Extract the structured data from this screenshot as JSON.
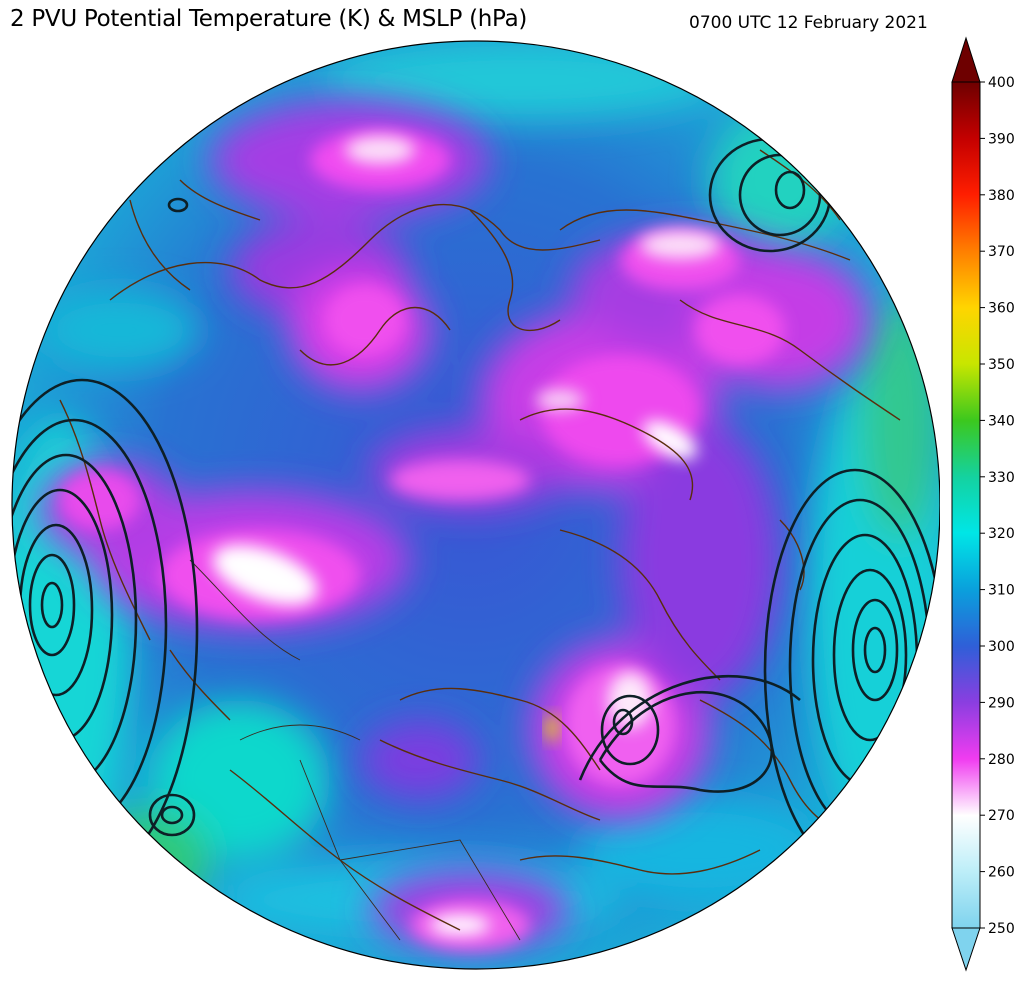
{
  "header": {
    "title": "2 PVU Potential Temperature (K) & MSLP (hPa)",
    "valid_time": "0700 UTC 12 February 2021"
  },
  "colorbar": {
    "min": 250,
    "max": 400,
    "ticks": [
      "400",
      "390",
      "380",
      "370",
      "360",
      "350",
      "340",
      "330",
      "320",
      "310",
      "300",
      "290",
      "280",
      "270",
      "260",
      "250"
    ],
    "extend": "both",
    "colors": {
      "400": "#6e0000",
      "390": "#c40000",
      "380": "#ff1e00",
      "370": "#ff7f00",
      "360": "#ffd500",
      "350": "#e6ee00",
      "340": "#3cc81e",
      "330": "#14d2a0",
      "320": "#00e6e6",
      "310": "#0aa0dc",
      "300": "#2f5fd8",
      "290": "#8a3ee0",
      "280": "#f03cf0",
      "270": "#ffffff",
      "260": "#bdeef8",
      "250": "#7fd3ee"
    }
  },
  "map": {
    "projection": "north-polar-stereographic",
    "coastline_color": "#5a2d0c",
    "mslp_contour_color": "#0d1f26"
  }
}
